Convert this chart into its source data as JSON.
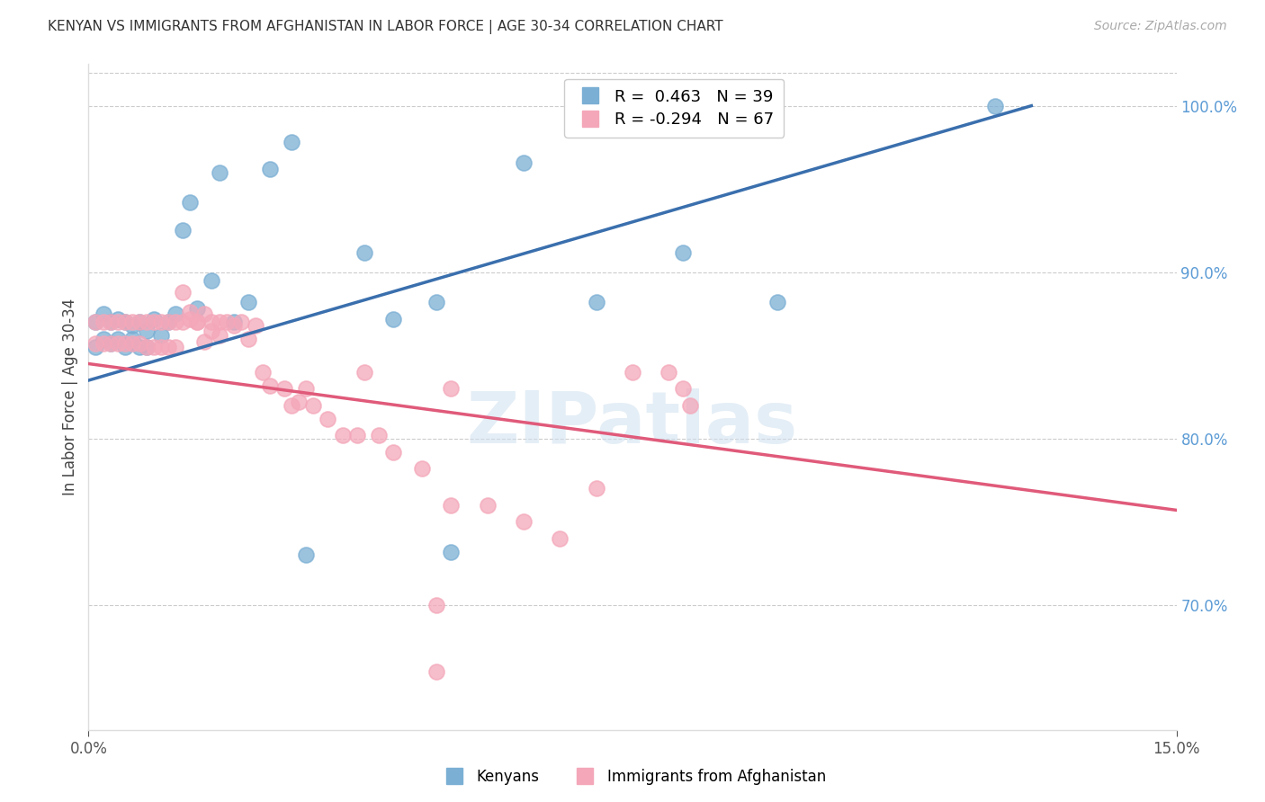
{
  "title": "KENYAN VS IMMIGRANTS FROM AFGHANISTAN IN LABOR FORCE | AGE 30-34 CORRELATION CHART",
  "source": "Source: ZipAtlas.com",
  "ylabel_left": "In Labor Force | Age 30-34",
  "x_min": 0.0,
  "x_max": 0.15,
  "y_min": 0.625,
  "y_max": 1.025,
  "right_yticks": [
    0.7,
    0.8,
    0.9,
    1.0
  ],
  "grid_color": "#cccccc",
  "bg_color": "#ffffff",
  "kenyan_color": "#7bafd4",
  "afghan_color": "#f4a7b9",
  "kenyan_line_color": "#3a6fad",
  "afghan_line_color": "#e05a7a",
  "kenyan_R": 0.463,
  "kenyan_N": 39,
  "afghan_R": -0.294,
  "afghan_N": 67,
  "watermark": "ZIPatlas",
  "kenyan_line_x0": 0.0,
  "kenyan_line_y0": 0.835,
  "kenyan_line_x1": 0.13,
  "kenyan_line_y1": 1.0,
  "afghan_line_x0": 0.0,
  "afghan_line_y0": 0.845,
  "afghan_line_x1": 0.15,
  "afghan_line_y1": 0.757,
  "kenyan_x": [
    0.001,
    0.001,
    0.002,
    0.002,
    0.003,
    0.003,
    0.004,
    0.004,
    0.005,
    0.005,
    0.006,
    0.006,
    0.007,
    0.007,
    0.008,
    0.008,
    0.009,
    0.01,
    0.011,
    0.012,
    0.013,
    0.014,
    0.015,
    0.017,
    0.018,
    0.02,
    0.022,
    0.025,
    0.028,
    0.03,
    0.038,
    0.042,
    0.048,
    0.05,
    0.06,
    0.07,
    0.082,
    0.095,
    0.125
  ],
  "kenyan_y": [
    0.855,
    0.87,
    0.86,
    0.875,
    0.857,
    0.87,
    0.86,
    0.872,
    0.855,
    0.87,
    0.86,
    0.868,
    0.855,
    0.87,
    0.855,
    0.865,
    0.872,
    0.862,
    0.87,
    0.875,
    0.925,
    0.942,
    0.878,
    0.895,
    0.96,
    0.87,
    0.882,
    0.962,
    0.978,
    0.73,
    0.912,
    0.872,
    0.882,
    0.732,
    0.966,
    0.882,
    0.912,
    0.882,
    1.0
  ],
  "afghan_x": [
    0.001,
    0.001,
    0.002,
    0.002,
    0.003,
    0.003,
    0.004,
    0.004,
    0.005,
    0.005,
    0.006,
    0.006,
    0.007,
    0.007,
    0.008,
    0.008,
    0.009,
    0.009,
    0.01,
    0.01,
    0.011,
    0.011,
    0.012,
    0.012,
    0.013,
    0.013,
    0.014,
    0.014,
    0.015,
    0.015,
    0.016,
    0.016,
    0.017,
    0.017,
    0.018,
    0.018,
    0.019,
    0.02,
    0.021,
    0.022,
    0.023,
    0.024,
    0.025,
    0.027,
    0.028,
    0.029,
    0.03,
    0.031,
    0.033,
    0.035,
    0.037,
    0.038,
    0.04,
    0.042,
    0.046,
    0.05,
    0.05,
    0.055,
    0.06,
    0.065,
    0.07,
    0.075,
    0.08,
    0.082,
    0.083,
    0.048,
    0.048
  ],
  "afghan_y": [
    0.857,
    0.87,
    0.857,
    0.87,
    0.857,
    0.87,
    0.857,
    0.87,
    0.857,
    0.87,
    0.857,
    0.87,
    0.857,
    0.87,
    0.855,
    0.87,
    0.855,
    0.87,
    0.855,
    0.87,
    0.855,
    0.87,
    0.855,
    0.87,
    0.87,
    0.888,
    0.872,
    0.876,
    0.87,
    0.87,
    0.875,
    0.858,
    0.865,
    0.87,
    0.87,
    0.862,
    0.87,
    0.868,
    0.87,
    0.86,
    0.868,
    0.84,
    0.832,
    0.83,
    0.82,
    0.822,
    0.83,
    0.82,
    0.812,
    0.802,
    0.802,
    0.84,
    0.802,
    0.792,
    0.782,
    0.83,
    0.76,
    0.76,
    0.75,
    0.74,
    0.77,
    0.84,
    0.84,
    0.83,
    0.82,
    0.7,
    0.66
  ]
}
